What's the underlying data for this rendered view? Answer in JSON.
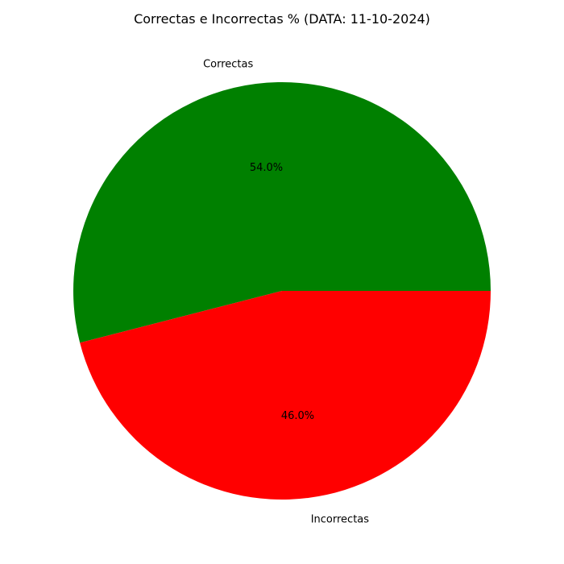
{
  "chart_data": {
    "type": "pie",
    "title": "Correctas e Incorrectas % (DATA: 11-10-2024)",
    "slices": [
      {
        "label": "Correctas",
        "value": 54.0,
        "pct_label": "54.0%",
        "color": "#008000"
      },
      {
        "label": "Incorrectas",
        "value": 46.0,
        "pct_label": "46.0%",
        "color": "#ff0000"
      }
    ],
    "start_angle": 0,
    "direction": "counterclockwise"
  }
}
